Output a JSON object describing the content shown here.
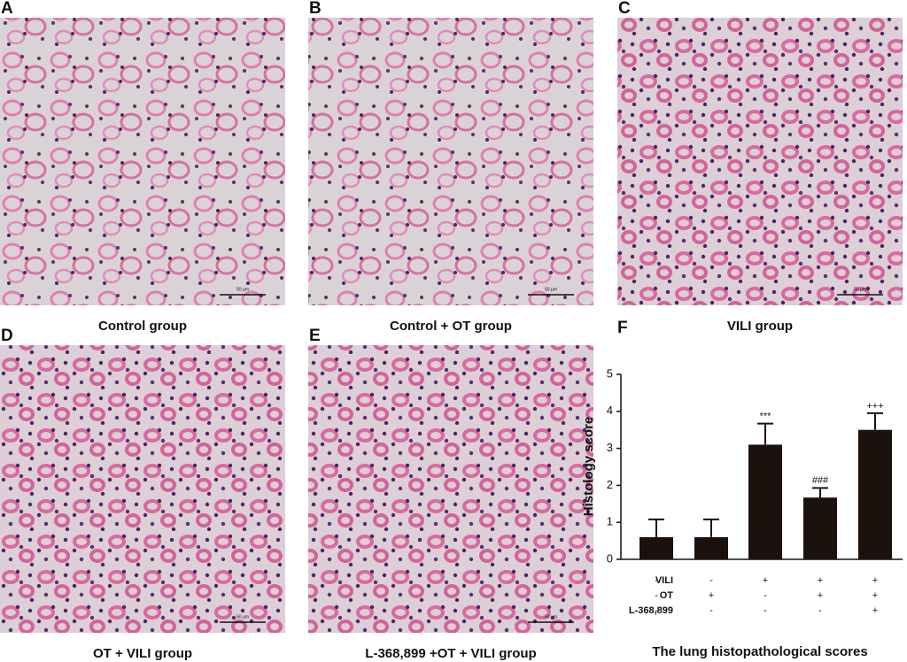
{
  "panels": [
    {
      "label": "A",
      "caption": "Control group",
      "scale_bar": "50 μm"
    },
    {
      "label": "B",
      "caption": "Control + OT group",
      "scale_bar": "50 μm"
    },
    {
      "label": "C",
      "caption": "VILI group",
      "scale_bar": "50 μm"
    },
    {
      "label": "D",
      "caption": "OT + VILI group",
      "scale_bar": "50 μm"
    },
    {
      "label": "E",
      "caption": "L-368,899 +OT + VILI group",
      "scale_bar": "50 μm"
    }
  ],
  "chart_data": {
    "type": "bar",
    "panel_label": "F",
    "caption": "The lung histopathological scores",
    "y_label": "Histology score",
    "categories": [
      null,
      null,
      null,
      null,
      null
    ],
    "values": [
      0.6,
      0.6,
      3.1,
      1.67,
      3.5
    ],
    "errors": [
      0.48,
      0.48,
      0.57,
      0.26,
      0.45
    ],
    "annotations": [
      null,
      null,
      "***",
      "###",
      "+++"
    ],
    "conditions": [
      {
        "name": "VILI",
        "marks": [
          "-",
          "-",
          "+",
          "+",
          "+"
        ]
      },
      {
        "name": "OT",
        "marks": [
          "-",
          "+",
          "-",
          "+",
          "+"
        ]
      },
      {
        "name": "L-368,899",
        "marks": [
          "-",
          "-",
          "-",
          "-",
          "+"
        ]
      }
    ],
    "color": "#1c120d",
    "ylim": [
      0,
      5
    ],
    "yticks": [
      0,
      1,
      2,
      3,
      4,
      5
    ]
  }
}
